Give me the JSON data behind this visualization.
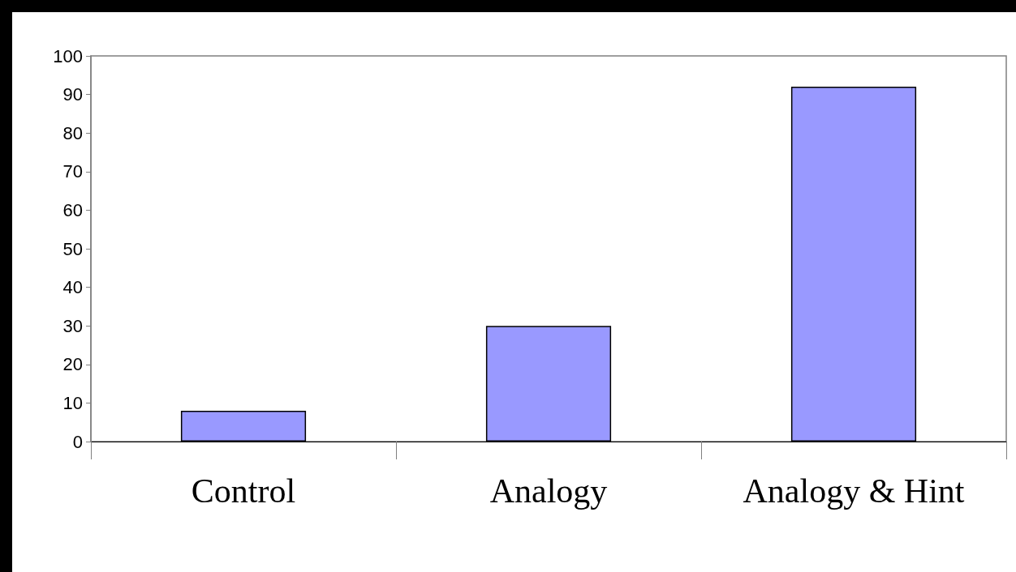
{
  "chart_data": {
    "type": "bar",
    "categories": [
      "Control",
      "Analogy",
      "Analogy & Hint"
    ],
    "values": [
      8,
      30,
      92
    ],
    "color": "#9999ff",
    "ylim": [
      0,
      100
    ],
    "yticks": [
      0,
      10,
      20,
      30,
      40,
      50,
      60,
      70,
      80,
      90,
      100
    ],
    "grid": false
  }
}
